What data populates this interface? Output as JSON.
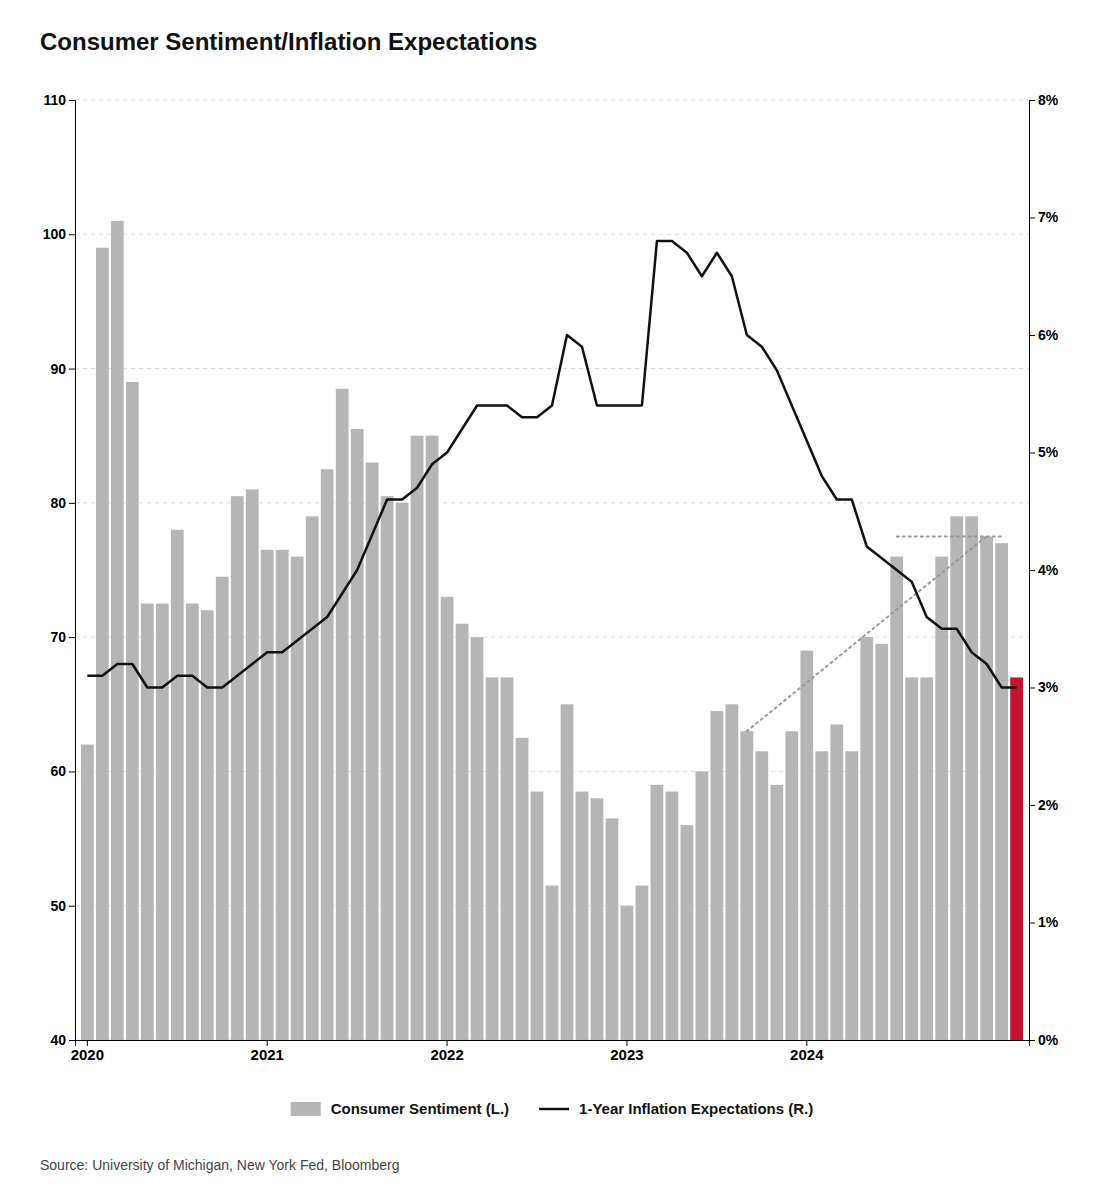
{
  "chart_data": {
    "type": "bar",
    "title": "Consumer Sentiment/Inflation Expectations",
    "source": "Source: University of Michigan, New York Fed, Bloomberg",
    "categories": [
      "2020",
      null,
      null,
      null,
      null,
      null,
      null,
      null,
      null,
      null,
      null,
      null,
      "2021",
      null,
      null,
      null,
      null,
      null,
      null,
      null,
      null,
      null,
      null,
      null,
      "2022",
      null,
      null,
      null,
      null,
      null,
      null,
      null,
      null,
      null,
      null,
      null,
      "2023",
      null,
      null,
      null,
      null,
      null,
      null,
      null,
      null,
      null,
      null,
      null,
      "2024",
      null,
      null,
      null,
      null,
      null,
      null,
      null,
      null,
      null,
      null,
      null,
      null,
      null,
      null
    ],
    "series": [
      {
        "name": "Consumer Sentiment (L.)",
        "type": "bar",
        "color": "#b5b5b5",
        "colors": [
          "#b5b5b5",
          "#b5b5b5",
          "#b5b5b5",
          "#b5b5b5",
          "#b5b5b5",
          "#b5b5b5",
          "#b5b5b5",
          "#b5b5b5",
          "#b5b5b5",
          "#b5b5b5",
          "#b5b5b5",
          "#b5b5b5",
          "#b5b5b5",
          "#b5b5b5",
          "#b5b5b5",
          "#b5b5b5",
          "#b5b5b5",
          "#b5b5b5",
          "#b5b5b5",
          "#b5b5b5",
          "#b5b5b5",
          "#b5b5b5",
          "#b5b5b5",
          "#b5b5b5",
          "#b5b5b5",
          "#b5b5b5",
          "#b5b5b5",
          "#b5b5b5",
          "#b5b5b5",
          "#b5b5b5",
          "#b5b5b5",
          "#b5b5b5",
          "#b5b5b5",
          "#b5b5b5",
          "#b5b5b5",
          "#b5b5b5",
          "#b5b5b5",
          "#b5b5b5",
          "#b5b5b5",
          "#b5b5b5",
          "#b5b5b5",
          "#b5b5b5",
          "#b5b5b5",
          "#b5b5b5",
          "#b5b5b5",
          "#b5b5b5",
          "#b5b5b5",
          "#b5b5b5",
          "#b5b5b5",
          "#b5b5b5",
          "#b5b5b5",
          "#b5b5b5",
          "#b5b5b5",
          "#b5b5b5",
          "#b5b5b5",
          "#b5b5b5",
          "#b5b5b5",
          "#b5b5b5",
          "#b5b5b5",
          "#b5b5b5",
          "#b5b5b5",
          "#b5b5b5",
          "#c41230"
        ],
        "values": [
          62.0,
          99.0,
          101.0,
          89.0,
          72.5,
          72.5,
          78.0,
          72.5,
          72.0,
          74.5,
          80.5,
          81.0,
          76.5,
          76.5,
          76.0,
          79.0,
          82.5,
          88.5,
          85.5,
          83.0,
          80.5,
          80.0,
          85.0,
          85.0,
          73.0,
          71.0,
          70.0,
          67.0,
          67.0,
          62.5,
          58.5,
          51.5,
          65.0,
          58.5,
          58.0,
          56.5,
          50.0,
          51.5,
          59.0,
          58.5,
          56.0,
          60.0,
          64.5,
          65.0,
          63.0,
          61.5,
          59.0,
          63.0,
          69.0,
          61.5,
          63.5,
          61.5,
          70.0,
          69.5,
          76.0,
          67.0,
          67.0,
          76.0,
          79.0,
          79.0,
          77.5,
          77.0,
          67.0
        ]
      },
      {
        "name": "1-Year Inflation Expectations (R.)",
        "type": "line",
        "axis": "y2",
        "color": "#111111",
        "values": [
          3.1,
          3.1,
          3.2,
          3.2,
          3.0,
          3.0,
          3.1,
          3.1,
          3.0,
          3.0,
          3.1,
          3.2,
          3.3,
          3.3,
          3.4,
          3.5,
          3.6,
          3.8,
          4.0,
          4.3,
          4.6,
          4.6,
          4.7,
          4.9,
          5.0,
          5.2,
          5.4,
          5.4,
          5.4,
          5.3,
          5.3,
          5.4,
          6.0,
          5.9,
          5.4,
          5.4,
          5.4,
          5.4,
          6.8,
          6.8,
          6.7,
          6.5,
          6.7,
          6.5,
          6.0,
          5.9,
          5.7,
          5.4,
          5.1,
          4.8,
          4.6,
          4.6,
          4.2,
          4.1,
          4.0,
          3.9,
          3.6,
          3.5,
          3.5,
          3.3,
          3.2,
          3.0,
          3.0
        ]
      }
    ],
    "trend_lines": [
      {
        "from": 44,
        "to": 60,
        "color": "#999999",
        "line_style": "dotted"
      },
      {
        "from": 54,
        "to": 61,
        "y": 77.5,
        "color": "#999999",
        "line_style": "dotted"
      }
    ],
    "ylim": [
      40,
      110
    ],
    "yticks": [
      40,
      50,
      60,
      70,
      80,
      90,
      100,
      110
    ],
    "y2lim": [
      0,
      8
    ],
    "y2ticks": [
      {
        "value": 0,
        "label": "0%"
      },
      {
        "value": 1,
        "label": "1%"
      },
      {
        "value": 2,
        "label": "2%"
      },
      {
        "value": 3,
        "label": "3%"
      },
      {
        "value": 4,
        "label": "4%"
      },
      {
        "value": 5,
        "label": "5%"
      },
      {
        "value": 6,
        "label": "6%"
      },
      {
        "value": 7,
        "label": "7%"
      },
      {
        "value": 8,
        "label": "8%"
      }
    ],
    "grid": true,
    "legend": "bottom"
  }
}
